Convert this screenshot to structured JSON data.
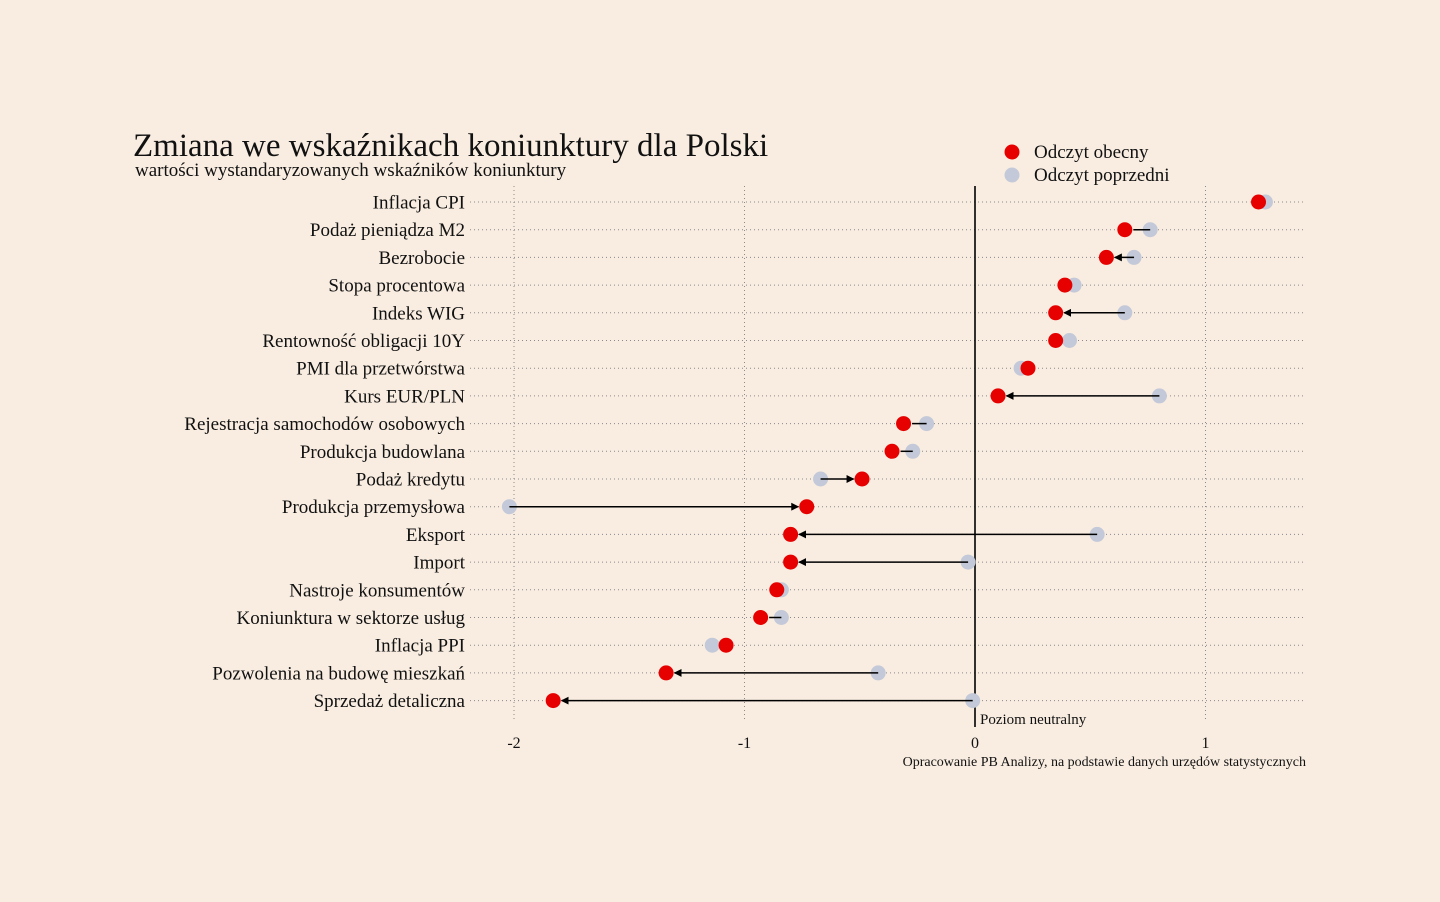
{
  "chart_data": {
    "type": "dot-arrow",
    "title": "Zmiana we wskaźnikach koniunktury dla Polski",
    "subtitle": "wartości wystandaryzowanych wskaźników koniunktury",
    "source": "Opracowanie PB Analizy, na podstawie danych urzędów statystycznych",
    "neutral_label": "Poziom neutralny",
    "xlim": [
      -2.2,
      1.43
    ],
    "xticks": [
      -2,
      -1,
      0,
      1
    ],
    "xtick_labels": [
      "-2",
      "-1",
      "0",
      "1"
    ],
    "grid": "vertical and horizontal dotted",
    "legend_position": "top-right",
    "series": [
      {
        "name": "Odczyt obecny",
        "color": "#e60000"
      },
      {
        "name": "Odczyt poprzedni",
        "color": "#c3c9d8"
      }
    ],
    "categories": [
      "Inflacja CPI",
      "Podaż pieniądza M2",
      "Bezrobocie",
      "Stopa procentowa",
      "Indeks WIG",
      "Rentowność obligacji 10Y",
      "PMI dla przetwórstwa",
      "Kurs EUR/PLN",
      "Rejestracja samochodów osobowych",
      "Produkcja budowlana",
      "Podaż kredytu",
      "Produkcja przemysłowa",
      "Eksport",
      "Import",
      "Nastroje konsumentów",
      "Koniunktura w sektorze usług",
      "Inflacja PPI",
      "Pozwolenia na budowę mieszkań",
      "Sprzedaż detaliczna"
    ],
    "current": [
      1.23,
      0.65,
      0.57,
      0.39,
      0.35,
      0.35,
      0.23,
      0.1,
      -0.31,
      -0.36,
      -0.49,
      -0.73,
      -0.8,
      -0.8,
      -0.86,
      -0.93,
      -1.08,
      -1.34,
      -1.83
    ],
    "previous": [
      1.26,
      0.76,
      0.69,
      0.43,
      0.65,
      0.41,
      0.2,
      0.8,
      -0.21,
      -0.27,
      -0.67,
      -2.02,
      0.53,
      -0.03,
      -0.84,
      -0.84,
      -1.14,
      -0.42,
      -0.01
    ]
  }
}
